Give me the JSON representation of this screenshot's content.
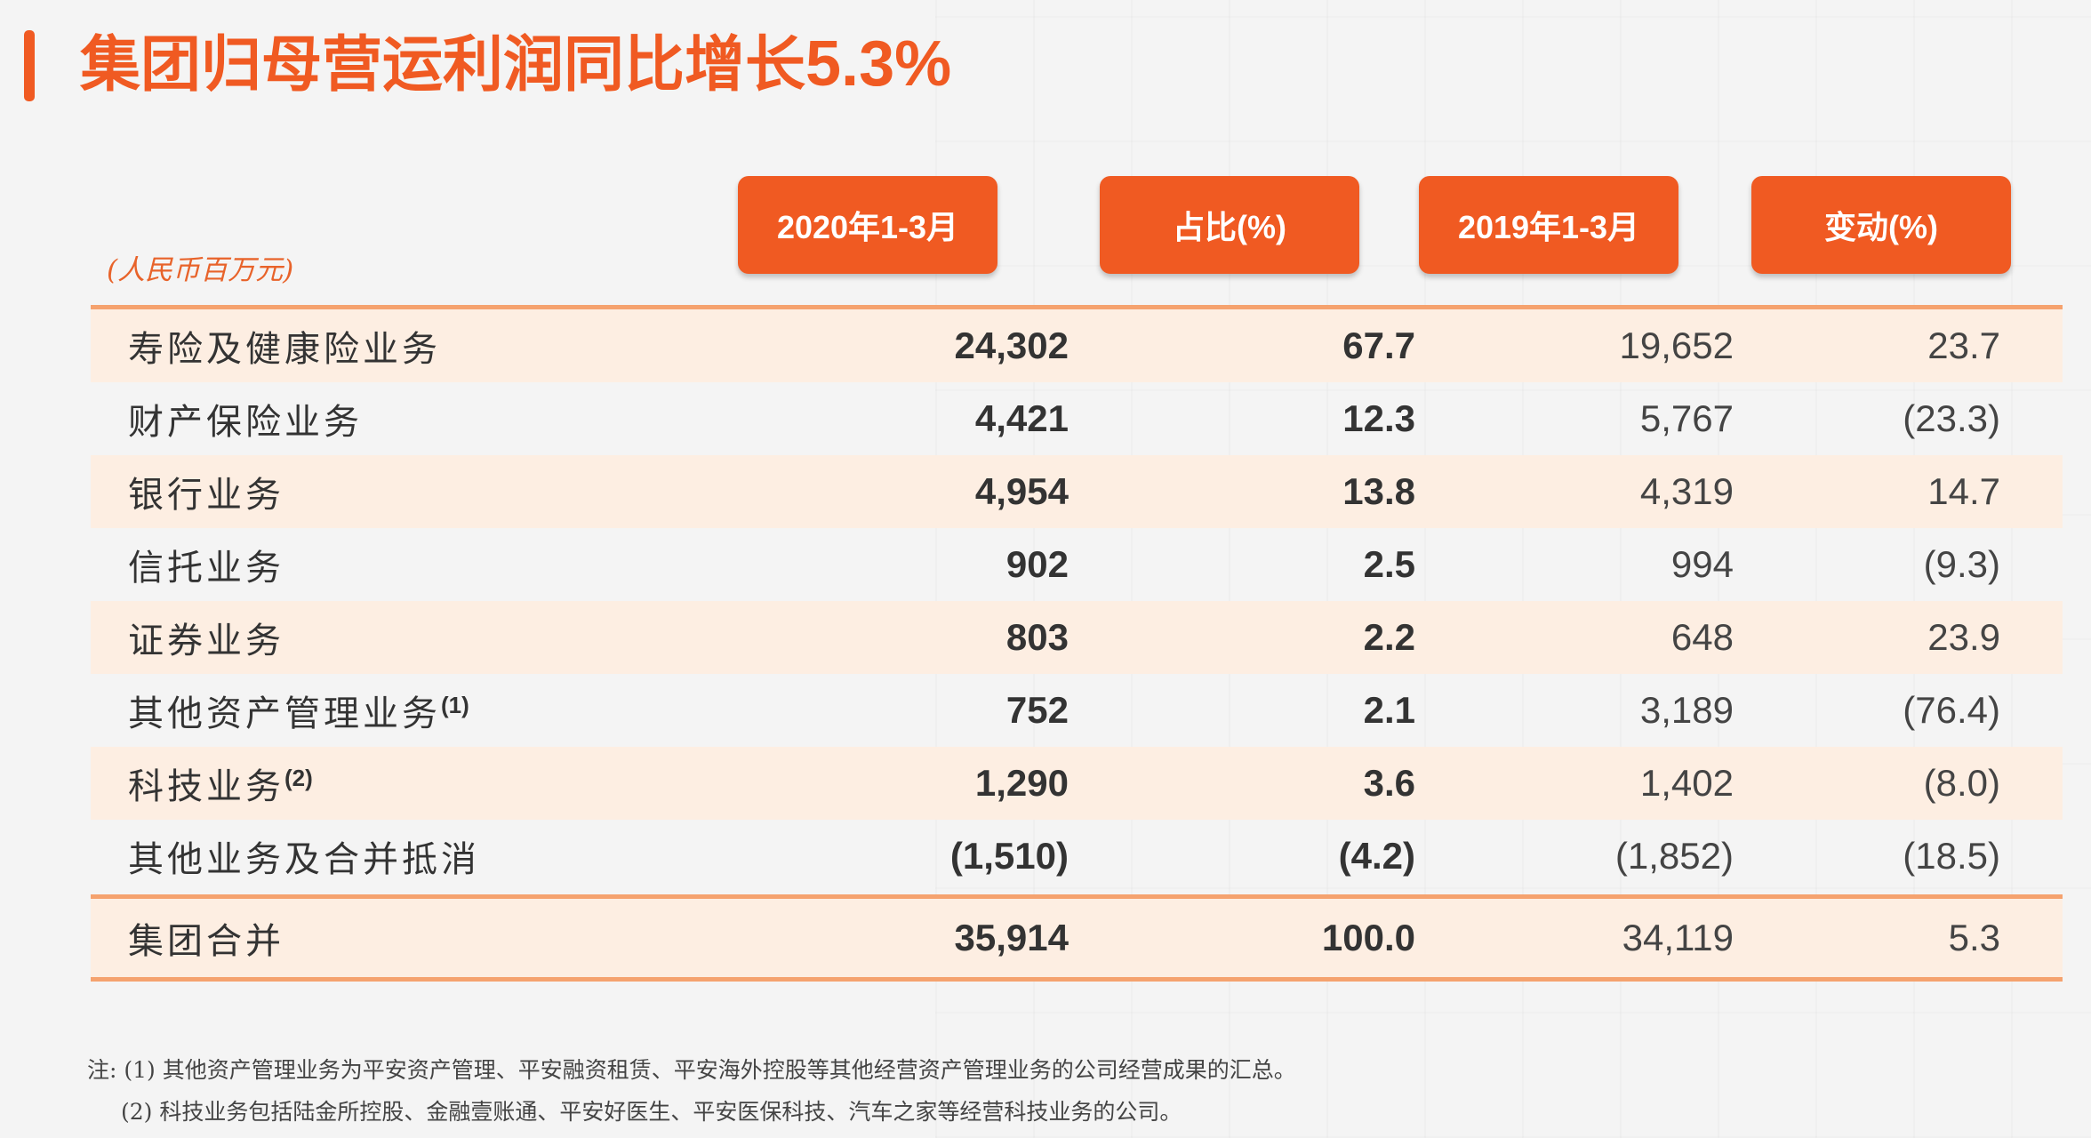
{
  "title": {
    "text": "集团归母营运利润同比增长",
    "highlight": "5.3%"
  },
  "unit_label": "(人民币百万元)",
  "headers": [
    "2020年1-3月",
    "占比(%)",
    "2019年1-3月",
    "变动(%)"
  ],
  "rows": [
    {
      "label": "寿险及健康险业务",
      "sup": "",
      "v2020": "24,302",
      "share": "67.7",
      "v2019": "19,652",
      "change": "23.7"
    },
    {
      "label": "财产保险业务",
      "sup": "",
      "v2020": "4,421",
      "share": "12.3",
      "v2019": "5,767",
      "change": "(23.3)"
    },
    {
      "label": "银行业务",
      "sup": "",
      "v2020": "4,954",
      "share": "13.8",
      "v2019": "4,319",
      "change": "14.7"
    },
    {
      "label": "信托业务",
      "sup": "",
      "v2020": "902",
      "share": "2.5",
      "v2019": "994",
      "change": "(9.3)"
    },
    {
      "label": "证券业务",
      "sup": "",
      "v2020": "803",
      "share": "2.2",
      "v2019": "648",
      "change": "23.9"
    },
    {
      "label": "其他资产管理业务",
      "sup": "(1)",
      "v2020": "752",
      "share": "2.1",
      "v2019": "3,189",
      "change": "(76.4)"
    },
    {
      "label": "科技业务",
      "sup": "(2)",
      "v2020": "1,290",
      "share": "3.6",
      "v2019": "1,402",
      "change": "(8.0)"
    },
    {
      "label": "其他业务及合并抵消",
      "sup": "",
      "v2020": "(1,510)",
      "share": "(4.2)",
      "v2019": "(1,852)",
      "change": "(18.5)"
    }
  ],
  "total": {
    "label": "集团合并",
    "v2020": "35,914",
    "share": "100.0",
    "v2019": "34,119",
    "change": "5.3"
  },
  "notes": [
    "注: (1) 其他资产管理业务为平安资产管理、平安融资租赁、平安海外控股等其他经营资产管理业务的公司经营成果的汇总。",
    "(2) 科技业务包括陆金所控股、金融壹账通、平安好医生、平安医保科技、汽车之家等经营科技业务的公司。"
  ],
  "colors": {
    "accent": "#f05a22",
    "row_shade": "#fdeee2",
    "rule": "#f5a26e"
  }
}
